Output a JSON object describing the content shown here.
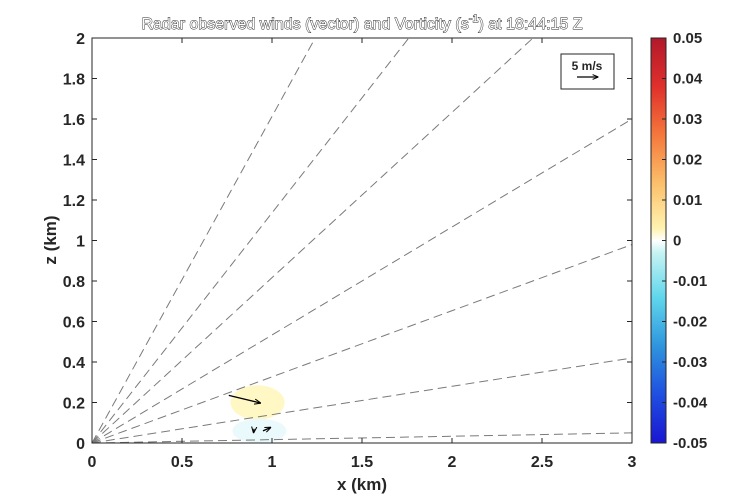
{
  "chart_data": {
    "type": "quiver",
    "title_main": "Radar observed winds (vector) and Vorticity (s",
    "title_sup": "-1",
    "title_end": ") at 18:44:15 Z",
    "xlabel": "x (km)",
    "ylabel": "z (km)",
    "xlim": [
      0,
      3
    ],
    "ylim": [
      0,
      2
    ],
    "xticks": [
      0,
      0.5,
      1,
      1.5,
      2,
      2.5,
      3
    ],
    "xtick_labels": [
      "0",
      "0.5",
      "1",
      "1.5",
      "2",
      "2.5",
      "3"
    ],
    "yticks": [
      0,
      0.2,
      0.4,
      0.6,
      0.8,
      1,
      1.2,
      1.4,
      1.6,
      1.8,
      2
    ],
    "ytick_labels": [
      "0",
      "0.2",
      "0.4",
      "0.6",
      "0.8",
      "1",
      "1.2",
      "1.4",
      "1.6",
      "1.8",
      "2"
    ],
    "grid": false,
    "radar_beams": [
      {
        "x_end": 3.0,
        "y_end": 0.05
      },
      {
        "x_end": 3.0,
        "y_end": 0.42
      },
      {
        "x_end": 3.0,
        "y_end": 0.98
      },
      {
        "x_end": 3.0,
        "y_end": 1.6
      },
      {
        "x_end": 2.45,
        "y_end": 2.0
      },
      {
        "x_end": 1.76,
        "y_end": 2.0
      },
      {
        "x_end": 1.24,
        "y_end": 2.0
      }
    ],
    "vorticity_patches": [
      {
        "x_center": 0.92,
        "y_center": 0.2,
        "rx": 0.15,
        "ry": 0.085,
        "value": 0.005
      },
      {
        "x_center": 0.93,
        "y_center": 0.06,
        "rx": 0.15,
        "ry": 0.06,
        "value": -0.004
      }
    ],
    "wind_vectors": [
      {
        "x": 0.76,
        "y": 0.235,
        "u": 7.5,
        "w": -1.8
      },
      {
        "x": 0.95,
        "y": 0.06,
        "u": 1.8,
        "w": 0.8
      },
      {
        "x": 0.9,
        "y": 0.07,
        "u": -0.1,
        "w": -0.9
      }
    ],
    "vector_legend": {
      "label": "5 m/s",
      "speed": 5,
      "position": "top-right"
    },
    "colorbar": {
      "min": -0.05,
      "max": 0.05,
      "colormap": "blue-white-red",
      "ticks": [
        0.05,
        0.04,
        0.03,
        0.02,
        0.01,
        0,
        -0.01,
        -0.02,
        -0.03,
        -0.04,
        -0.05
      ],
      "tick_labels": [
        "0.05",
        "0.04",
        "0.03",
        "0.02",
        "0.01",
        "0",
        "-0.01",
        "-0.02",
        "-0.03",
        "-0.04",
        "-0.05"
      ]
    }
  }
}
